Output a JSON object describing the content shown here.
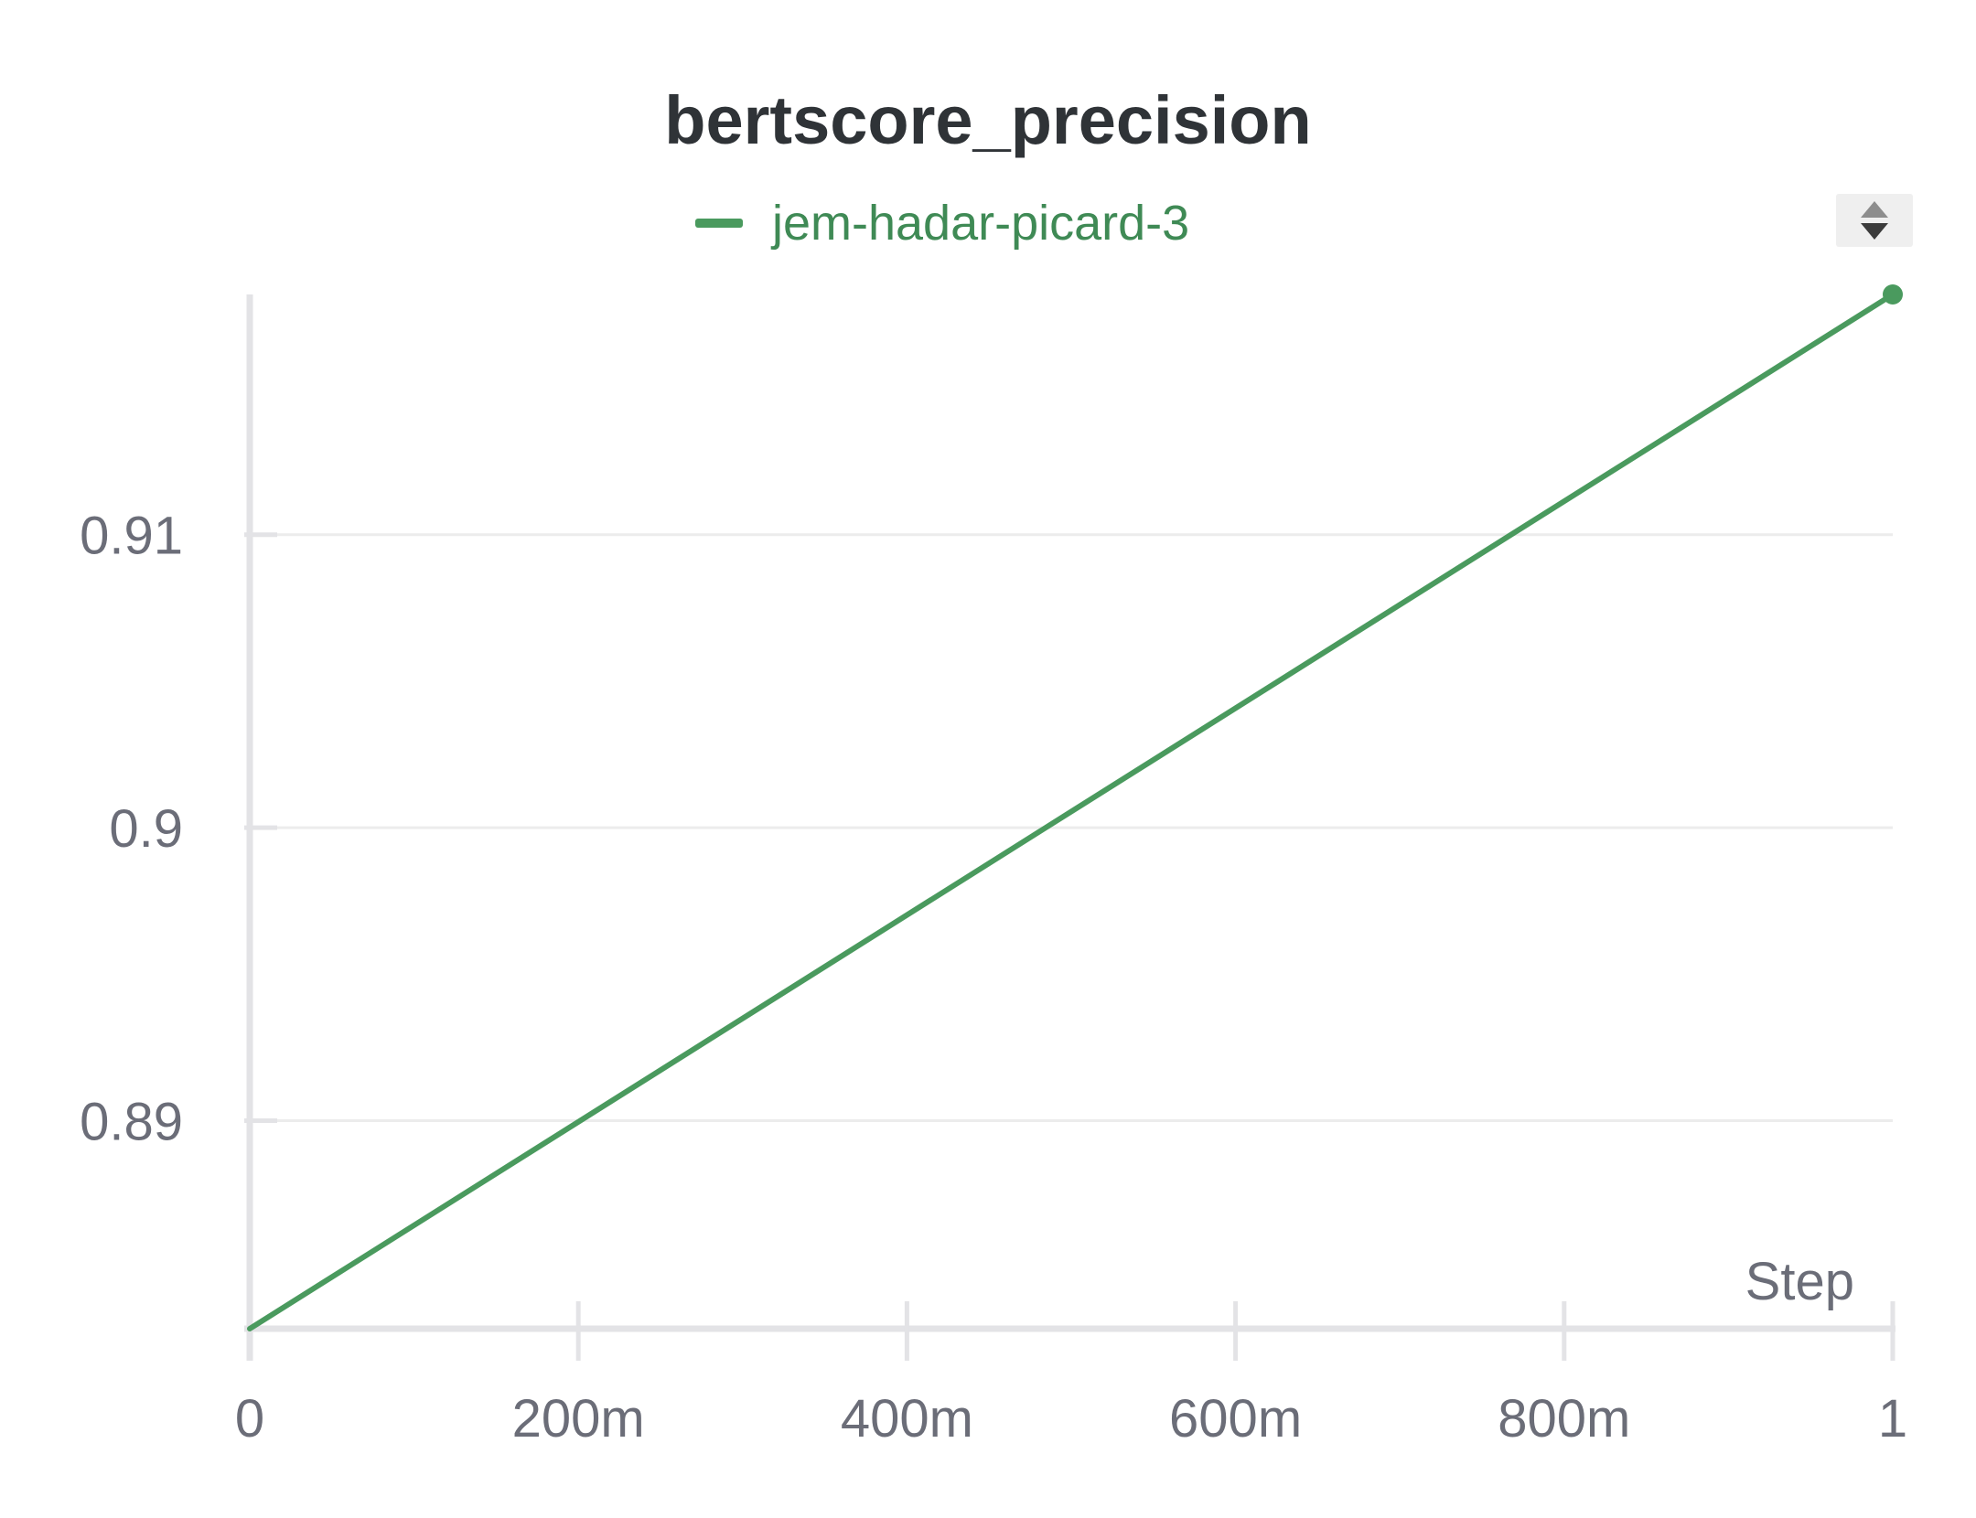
{
  "chart_data": {
    "type": "line",
    "title": "bertscore_precision",
    "xlabel": "Step",
    "ylabel": "",
    "x_tick_labels": [
      "0",
      "200m",
      "400m",
      "600m",
      "800m",
      "1"
    ],
    "x_tick_values": [
      0,
      0.2,
      0.4,
      0.6,
      0.8,
      1
    ],
    "y_tick_labels": [
      "0.89",
      "0.9",
      "0.91"
    ],
    "y_tick_values": [
      0.89,
      0.9,
      0.91
    ],
    "xlim": [
      0,
      1
    ],
    "ylim": [
      0.8829,
      0.9182
    ],
    "grid": true,
    "legend_position": "top-center",
    "series": [
      {
        "name": "jem-hadar-picard-3",
        "color": "#4a9a5e",
        "x": [
          0,
          1
        ],
        "y": [
          0.8829,
          0.9182
        ]
      }
    ]
  },
  "controls": {
    "sort_icon": "sort-arrows-icon"
  }
}
